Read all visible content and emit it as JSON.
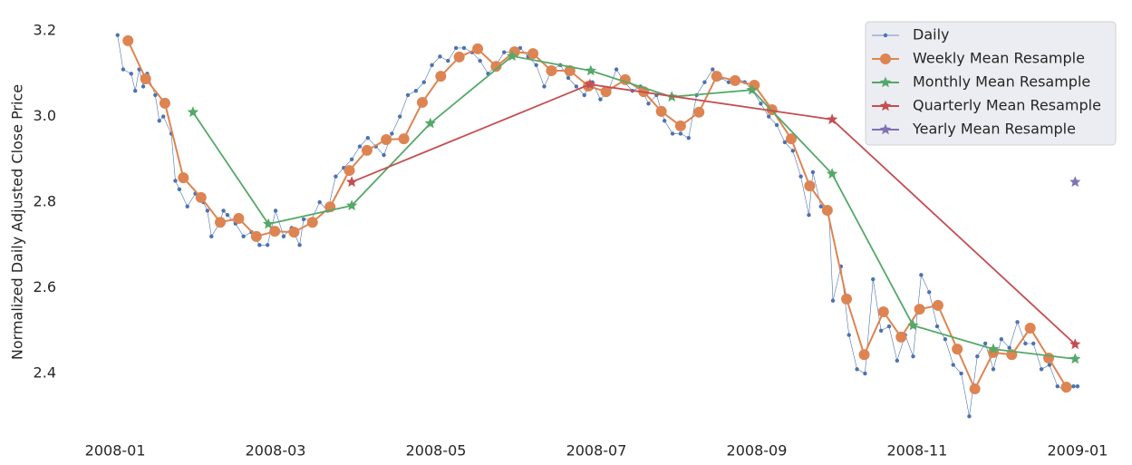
{
  "chart_data": {
    "type": "line",
    "ylabel": "Normalized Daily Adjusted Close Price",
    "xlim": [
      -0.6,
      12.6
    ],
    "xticks": [
      {
        "value": 0,
        "label": "2008-01"
      },
      {
        "value": 2,
        "label": "2008-03"
      },
      {
        "value": 4,
        "label": "2008-05"
      },
      {
        "value": 6,
        "label": "2008-07"
      },
      {
        "value": 8,
        "label": "2008-09"
      },
      {
        "value": 10,
        "label": "2008-11"
      },
      {
        "value": 12,
        "label": "2009-01"
      }
    ],
    "ylim": [
      2.26,
      3.25
    ],
    "yticks": [
      2.4,
      2.6,
      2.8,
      {
        "value": 3,
        "label": "3.0"
      },
      3.2
    ],
    "legend": "upper right",
    "series": [
      {
        "name": "Daily",
        "color": "#4c72b0",
        "marker": "dot",
        "x": [
          0.03,
          0.1,
          0.2,
          0.25,
          0.3,
          0.35,
          0.4,
          0.5,
          0.55,
          0.6,
          0.7,
          0.75,
          0.8,
          0.9,
          1.0,
          1.1,
          1.15,
          1.2,
          1.3,
          1.35,
          1.4,
          1.5,
          1.6,
          1.7,
          1.8,
          1.9,
          2.0,
          2.1,
          2.2,
          2.3,
          2.35,
          2.45,
          2.55,
          2.65,
          2.75,
          2.85,
          2.95,
          3.05,
          3.15,
          3.25,
          3.35,
          3.45,
          3.55,
          3.65,
          3.75,
          3.85,
          3.95,
          4.05,
          4.15,
          4.25,
          4.35,
          4.45,
          4.55,
          4.65,
          4.75,
          4.85,
          4.95,
          5.05,
          5.15,
          5.25,
          5.35,
          5.45,
          5.55,
          5.65,
          5.75,
          5.85,
          5.95,
          6.05,
          6.15,
          6.25,
          6.35,
          6.45,
          6.55,
          6.65,
          6.75,
          6.85,
          6.95,
          7.05,
          7.15,
          7.25,
          7.35,
          7.45,
          7.55,
          7.65,
          7.75,
          7.85,
          7.95,
          8.05,
          8.15,
          8.25,
          8.35,
          8.45,
          8.55,
          8.65,
          8.7,
          8.8,
          8.9,
          8.95,
          9.05,
          9.15,
          9.25,
          9.35,
          9.45,
          9.55,
          9.65,
          9.75,
          9.85,
          9.95,
          10.05,
          10.15,
          10.25,
          10.35,
          10.45,
          10.55,
          10.65,
          10.75,
          10.85,
          10.95,
          11.05,
          11.15,
          11.25,
          11.35,
          11.45,
          11.55,
          11.65,
          11.75,
          11.85,
          11.95,
          12.0
        ],
        "values": [
          3.19,
          3.11,
          3.1,
          3.06,
          3.11,
          3.07,
          3.1,
          3.05,
          2.99,
          3.0,
          2.96,
          2.85,
          2.83,
          2.79,
          2.82,
          2.8,
          2.78,
          2.72,
          2.75,
          2.78,
          2.77,
          2.75,
          2.72,
          2.73,
          2.7,
          2.7,
          2.78,
          2.72,
          2.74,
          2.7,
          2.76,
          2.76,
          2.8,
          2.78,
          2.86,
          2.88,
          2.9,
          2.93,
          2.95,
          2.93,
          2.91,
          2.96,
          3.0,
          3.05,
          3.06,
          3.08,
          3.12,
          3.14,
          3.13,
          3.16,
          3.16,
          3.15,
          3.13,
          3.1,
          3.12,
          3.15,
          3.15,
          3.16,
          3.14,
          3.12,
          3.07,
          3.11,
          3.12,
          3.09,
          3.07,
          3.05,
          3.08,
          3.04,
          3.06,
          3.11,
          3.08,
          3.06,
          3.07,
          3.03,
          3.05,
          2.99,
          2.96,
          2.96,
          2.95,
          3.05,
          3.08,
          3.11,
          3.09,
          3.08,
          3.09,
          3.08,
          3.06,
          3.03,
          3.0,
          2.98,
          2.94,
          2.92,
          2.86,
          2.77,
          2.87,
          2.79,
          2.78,
          2.57,
          2.65,
          2.49,
          2.41,
          2.4,
          2.62,
          2.5,
          2.51,
          2.43,
          2.49,
          2.44,
          2.63,
          2.59,
          2.51,
          2.48,
          2.42,
          2.4,
          2.3,
          2.44,
          2.47,
          2.41,
          2.48,
          2.46,
          2.52,
          2.47,
          2.47,
          2.41,
          2.42,
          2.37,
          2.36,
          2.37,
          2.37
        ]
      },
      {
        "name": "Weekly Mean Resample",
        "color": "#dd8452",
        "marker": "circle",
        "x": [
          0.16,
          0.38,
          0.62,
          0.85,
          1.07,
          1.31,
          1.54,
          1.76,
          1.99,
          2.23,
          2.46,
          2.68,
          2.92,
          3.14,
          3.38,
          3.6,
          3.83,
          4.06,
          4.29,
          4.52,
          4.75,
          4.98,
          5.21,
          5.44,
          5.67,
          5.9,
          6.12,
          6.36,
          6.59,
          6.81,
          7.05,
          7.28,
          7.5,
          7.73,
          7.97,
          8.19,
          8.43,
          8.66,
          8.88,
          9.12,
          9.34,
          9.58,
          9.8,
          10.03,
          10.26,
          10.5,
          10.72,
          10.95,
          11.18,
          11.41,
          11.64,
          11.86
        ],
        "values": [
          3.177,
          3.088,
          3.031,
          2.857,
          2.811,
          2.753,
          2.762,
          2.72,
          2.732,
          2.73,
          2.753,
          2.789,
          2.874,
          2.921,
          2.946,
          2.948,
          3.033,
          3.094,
          3.139,
          3.158,
          3.117,
          3.151,
          3.147,
          3.107,
          3.107,
          3.071,
          3.058,
          3.086,
          3.058,
          3.012,
          2.978,
          3.01,
          3.094,
          3.084,
          3.073,
          3.016,
          2.948,
          2.838,
          2.781,
          2.574,
          2.444,
          2.544,
          2.485,
          2.55,
          2.559,
          2.457,
          2.364,
          2.449,
          2.444,
          2.506,
          2.436,
          2.368
        ]
      },
      {
        "name": "Monthly Mean Resample",
        "color": "#55a868",
        "marker": "star",
        "x": [
          0.97,
          1.91,
          2.95,
          3.93,
          4.95,
          5.93,
          6.94,
          7.94,
          8.94,
          9.95,
          10.95,
          11.97
        ],
        "values": [
          3.01,
          2.749,
          2.792,
          2.984,
          3.141,
          3.107,
          3.046,
          3.062,
          2.866,
          2.512,
          2.457,
          2.434
        ]
      },
      {
        "name": "Quarterly Mean Resample",
        "color": "#c44e52",
        "marker": "star",
        "x": [
          2.95,
          5.92,
          8.94,
          11.97
        ],
        "values": [
          2.847,
          3.075,
          2.993,
          2.468
        ]
      },
      {
        "name": "Yearly Mean Resample",
        "color": "#8172b3",
        "marker": "star",
        "x": [
          11.97
        ],
        "values": [
          2.847
        ]
      }
    ]
  }
}
